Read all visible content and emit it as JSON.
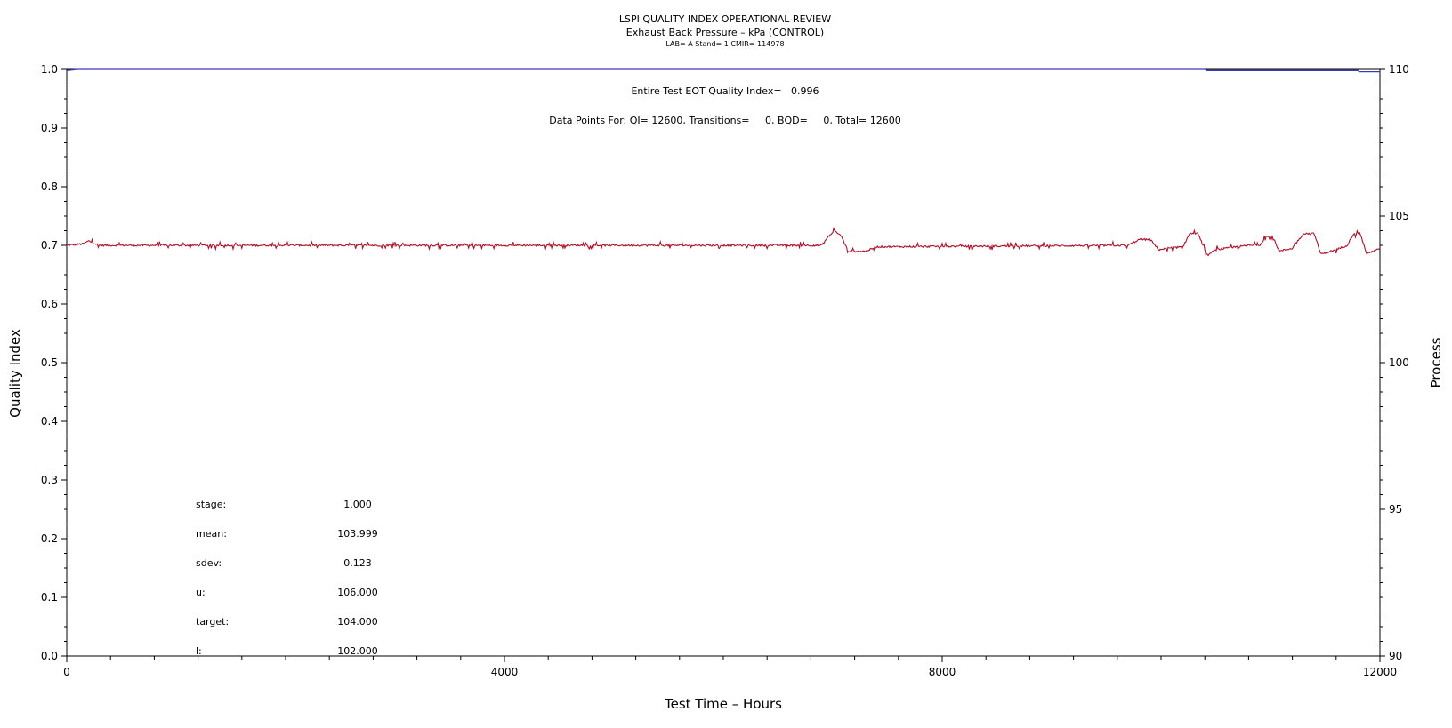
{
  "chart_data": {
    "type": "line",
    "title": "LSPI QUALITY INDEX OPERATIONAL REVIEW",
    "subtitle": "Exhaust Back Pressure – kPa (CONTROL)",
    "subtitle2": "LAB= A Stand= 1 CMIR= 114978",
    "xlabel": "Test Time – Hours",
    "ylabel": "Quality Index",
    "y2label": "Process",
    "xlim": [
      0,
      12000
    ],
    "ylim": [
      0,
      1
    ],
    "y2lim": [
      90,
      110
    ],
    "x_ticks": [
      "0",
      "4000",
      "8000",
      "12000"
    ],
    "y_ticks": [
      "0.0",
      "0.1",
      "0.2",
      "0.3",
      "0.4",
      "0.5",
      "0.6",
      "0.7",
      "0.8",
      "0.9",
      "1.0"
    ],
    "y2_ticks": [
      "90",
      "95",
      "100",
      "105",
      "110"
    ],
    "annotations": {
      "eot": "Entire Test EOT Quality Index=   0.996",
      "points": "Data Points For: QI= 12600, Transitions=     0, BQD=     0, Total= 12600"
    },
    "stats": [
      {
        "label": "stage:",
        "value": "1.000"
      },
      {
        "label": "mean:",
        "value": "103.999"
      },
      {
        "label": "sdev:",
        "value": "0.123"
      },
      {
        "label": "u:",
        "value": "106.000"
      },
      {
        "label": "target:",
        "value": "104.000"
      },
      {
        "label": "l:",
        "value": "102.000"
      }
    ],
    "series": [
      {
        "axis": "left",
        "color": "#3a3ab8",
        "points": [
          [
            0,
            0.998
          ],
          [
            100,
            1.0
          ],
          [
            10400,
            1.0
          ],
          [
            10420,
            0.998
          ],
          [
            11800,
            0.998
          ],
          [
            11810,
            0.996
          ],
          [
            12000,
            0.996
          ]
        ]
      },
      {
        "axis": "right",
        "color": "#b0102a",
        "base_points": [
          [
            0,
            104.0
          ],
          [
            150,
            104.05
          ],
          [
            200,
            104.15
          ],
          [
            300,
            104.0
          ],
          [
            1000,
            104.0
          ],
          [
            6900,
            104.0
          ],
          [
            6960,
            104.3
          ],
          [
            7020,
            104.5
          ],
          [
            7080,
            104.3
          ],
          [
            7140,
            103.8
          ],
          [
            7300,
            103.8
          ],
          [
            7400,
            103.95
          ],
          [
            9700,
            104.0
          ],
          [
            9800,
            104.2
          ],
          [
            9900,
            104.2
          ],
          [
            9980,
            103.85
          ],
          [
            10060,
            103.9
          ],
          [
            10200,
            103.95
          ],
          [
            10260,
            104.4
          ],
          [
            10340,
            104.4
          ],
          [
            10420,
            103.65
          ],
          [
            10500,
            103.85
          ],
          [
            10800,
            104.0
          ],
          [
            10900,
            104.0
          ],
          [
            10960,
            104.3
          ],
          [
            11020,
            104.3
          ],
          [
            11080,
            103.8
          ],
          [
            11200,
            103.9
          ],
          [
            11300,
            104.4
          ],
          [
            11400,
            104.4
          ],
          [
            11460,
            103.7
          ],
          [
            11600,
            103.85
          ],
          [
            11700,
            104.0
          ],
          [
            11760,
            104.4
          ],
          [
            11820,
            104.4
          ],
          [
            11880,
            103.7
          ],
          [
            11960,
            103.85
          ],
          [
            12000,
            103.85
          ]
        ]
      }
    ]
  }
}
